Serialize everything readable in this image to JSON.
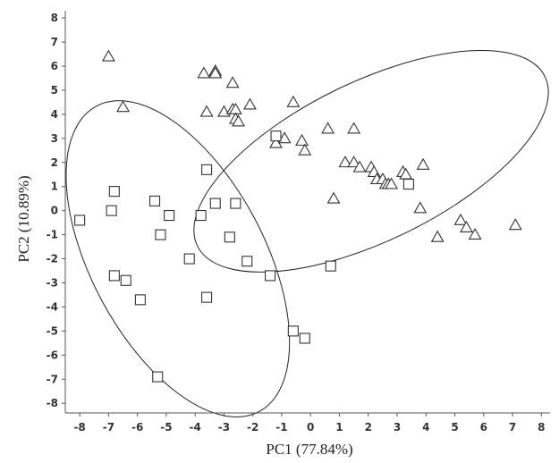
{
  "chart_data": {
    "type": "scatter",
    "xlabel": "PC1 (77.84%)",
    "ylabel": "PC2 (10.89%)",
    "xlim": [
      -8.5,
      8.3
    ],
    "ylim": [
      -8.4,
      8.3
    ],
    "xticks": [
      -8,
      -7,
      -6,
      -5,
      -4,
      -3,
      -2,
      -1,
      0,
      1,
      2,
      3,
      4,
      5,
      6,
      7,
      8
    ],
    "yticks": [
      8,
      7,
      6,
      5,
      4,
      3,
      2,
      1,
      0,
      -1,
      -2,
      -3,
      -4,
      -5,
      -6,
      -7,
      -8
    ],
    "grid": false,
    "series": [
      {
        "marker": "triangle",
        "color": "#333333",
        "points": [
          [
            -7.0,
            6.4
          ],
          [
            -6.5,
            4.3
          ],
          [
            -3.7,
            5.7
          ],
          [
            -3.3,
            5.8
          ],
          [
            -3.3,
            5.7
          ],
          [
            -2.7,
            5.3
          ],
          [
            -3.6,
            4.1
          ],
          [
            -3.0,
            4.1
          ],
          [
            -2.7,
            4.2
          ],
          [
            -2.6,
            4.2
          ],
          [
            -2.6,
            3.8
          ],
          [
            -2.5,
            3.7
          ],
          [
            -2.1,
            4.4
          ],
          [
            -1.2,
            2.8
          ],
          [
            -0.9,
            3.0
          ],
          [
            -0.6,
            4.5
          ],
          [
            -0.3,
            2.9
          ],
          [
            -0.2,
            2.5
          ],
          [
            0.6,
            3.4
          ],
          [
            0.8,
            0.5
          ],
          [
            1.2,
            2.0
          ],
          [
            1.5,
            3.4
          ],
          [
            1.5,
            2.0
          ],
          [
            1.7,
            1.8
          ],
          [
            2.1,
            1.8
          ],
          [
            2.2,
            1.6
          ],
          [
            2.3,
            1.3
          ],
          [
            2.5,
            1.3
          ],
          [
            2.6,
            1.1
          ],
          [
            2.7,
            1.1
          ],
          [
            2.8,
            1.1
          ],
          [
            3.2,
            1.6
          ],
          [
            3.3,
            1.5
          ],
          [
            3.9,
            1.9
          ],
          [
            3.8,
            0.1
          ],
          [
            4.4,
            -1.1
          ],
          [
            5.2,
            -0.4
          ],
          [
            5.4,
            -0.7
          ],
          [
            5.7,
            -1.0
          ],
          [
            7.1,
            -0.6
          ]
        ]
      },
      {
        "marker": "square",
        "color": "#333333",
        "points": [
          [
            -8.0,
            -0.4
          ],
          [
            -6.8,
            0.8
          ],
          [
            -6.9,
            0.0
          ],
          [
            -6.8,
            -2.7
          ],
          [
            -6.4,
            -2.9
          ],
          [
            -5.9,
            -3.7
          ],
          [
            -5.4,
            0.4
          ],
          [
            -5.2,
            -1.0
          ],
          [
            -4.9,
            -0.2
          ],
          [
            -4.2,
            -2.0
          ],
          [
            -3.8,
            -0.2
          ],
          [
            -3.6,
            1.7
          ],
          [
            -3.3,
            0.3
          ],
          [
            -2.8,
            -1.1
          ],
          [
            -2.6,
            0.3
          ],
          [
            -2.2,
            -2.1
          ],
          [
            -1.4,
            -2.7
          ],
          [
            -1.2,
            3.1
          ],
          [
            -3.6,
            -3.6
          ],
          [
            -5.3,
            -6.9
          ],
          [
            -0.6,
            -5.0
          ],
          [
            -0.2,
            -5.3
          ],
          [
            0.7,
            -2.3
          ],
          [
            3.4,
            1.1
          ]
        ]
      }
    ],
    "ellipses": [
      {
        "cx": 2.1,
        "cy": 2.05,
        "rx": 6.7,
        "ry": 3.3,
        "rotation_deg": 26
      },
      {
        "cx": -4.6,
        "cy": -2.0,
        "rx": 6.0,
        "ry": 3.6,
        "rotation_deg": -62
      }
    ]
  }
}
